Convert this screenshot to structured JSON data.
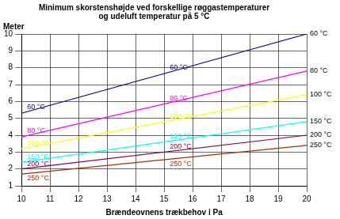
{
  "chart_data": {
    "type": "line",
    "title": [
      "Minimum skorstenshøjde ved forskellige røggastemperaturer",
      "og udeluft temperatur på 5 °C"
    ],
    "x_label": "Brændeovnens trækbehov i Pa",
    "y_label": "Meter",
    "x": [
      10,
      20
    ],
    "series": [
      {
        "name": "60 °C",
        "color": "#000080",
        "values": [
          5.3,
          10
        ]
      },
      {
        "name": "80 °C",
        "color": "#ff00ff",
        "values": [
          3.9,
          7.8
        ]
      },
      {
        "name": "100 °C",
        "color": "#ffff00",
        "values": [
          3.2,
          6.4
        ]
      },
      {
        "name": "150 °C",
        "color": "#00ffff",
        "values": [
          2.4,
          4.8
        ]
      },
      {
        "name": "200 °C",
        "color": "#800040",
        "values": [
          2.0,
          4.0
        ]
      },
      {
        "name": "250 °C",
        "color": "#993300",
        "values": [
          1.7,
          3.4
        ]
      }
    ],
    "xlim": [
      10,
      20
    ],
    "xticks": [
      10,
      11,
      12,
      13,
      14,
      15,
      16,
      17,
      18,
      19,
      20
    ],
    "ylim": [
      1,
      10
    ],
    "yticks": [
      1,
      2,
      3,
      4,
      5,
      6,
      7,
      8,
      9,
      10
    ],
    "grid": true
  }
}
